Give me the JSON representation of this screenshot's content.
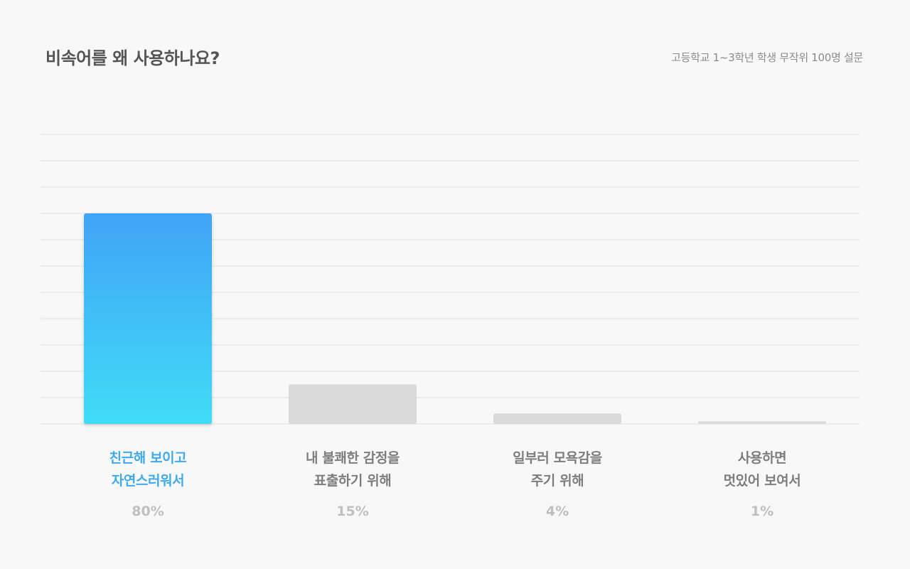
{
  "chart_data": {
    "type": "bar",
    "title": "비속어를 왜 사용하나요?",
    "subtitle": "고등학교 1~3학년 학생 무작위 100명 설문",
    "categories": [
      [
        "친근해 보이고",
        "자연스러워서"
      ],
      [
        "내 불쾌한 감정을",
        "표출하기 위해"
      ],
      [
        "일부러 모욕감을",
        "주기 위해"
      ],
      [
        "사용하면",
        "멋있어 보여서"
      ]
    ],
    "values": [
      80,
      15,
      4,
      1
    ],
    "value_labels": [
      "80%",
      "15%",
      "4%",
      "1%"
    ],
    "ylim": [
      0,
      110
    ],
    "grid": true,
    "highlight_index": 0,
    "colors": {
      "highlight_top": "#41a4f6",
      "highlight_bottom": "#41dcf6",
      "bar": "#dadada",
      "grid": "#e0e0e0",
      "highlight_label": "#3fa9ee"
    }
  }
}
